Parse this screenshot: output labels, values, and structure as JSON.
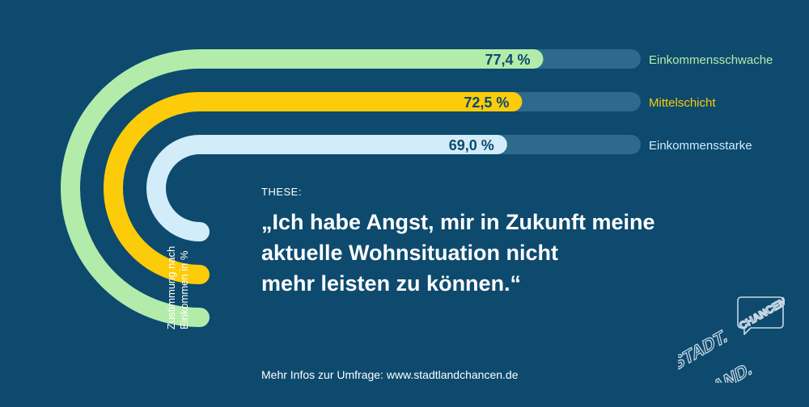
{
  "chart_data": {
    "type": "bar",
    "categories": [
      "Einkommensschwache",
      "Mittelschicht",
      "Einkommensstarke"
    ],
    "values": [
      77.4,
      72.5,
      69.0
    ],
    "value_labels": [
      "77,4 %",
      "72,5 %",
      "69,0 %"
    ],
    "ylim": [
      0,
      100
    ],
    "ylabel": [
      "Zustimmung nach",
      "Einkommen in %"
    ],
    "legend_placement": "right",
    "colors": {
      "Einkommensschwache": "#b3ecaa",
      "Mittelschicht": "#fccb0a",
      "Einkommensstarke": "#d2ecfa"
    },
    "track_color": "#2e6a8d",
    "label_text_color": "#0d4a6e",
    "background": "#0d4a6e"
  },
  "thesis": {
    "label": "THESE:",
    "lines": [
      "„Ich habe Angst, mir in Zukunft meine",
      "aktuelle Wohnsituation nicht",
      "mehr leisten zu können.“"
    ]
  },
  "footer": "Mehr Infos zur Umfrage: www.stadtlandchancen.de",
  "logo": {
    "text": [
      "STADT.",
      "LAND.",
      "CHANCEN"
    ],
    "color": "#c7d8e4"
  }
}
